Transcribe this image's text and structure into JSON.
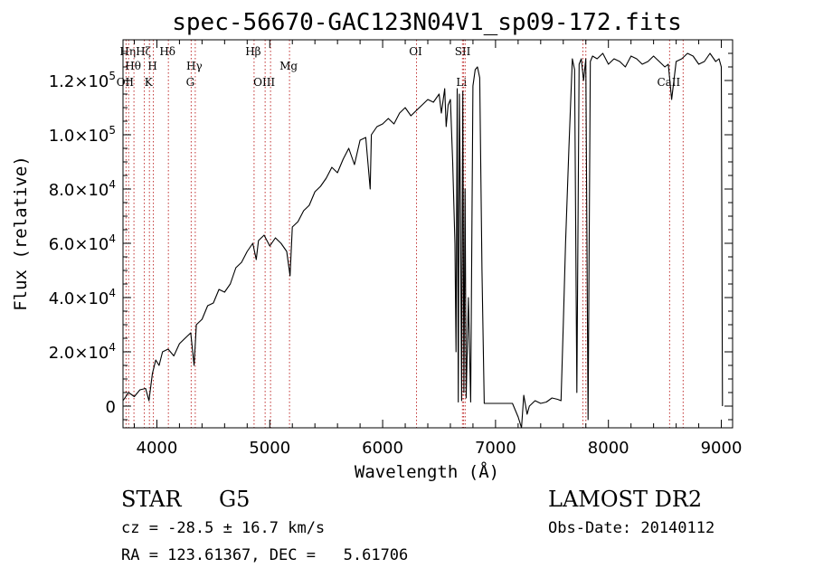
{
  "chart_data": {
    "type": "line",
    "title": "spec-56670-GAC123N04V1_sp09-172.fits",
    "xlabel": "Wavelength (Å)",
    "ylabel": "Flux (relative)",
    "xlim": [
      3700,
      9100
    ],
    "ylim": [
      -8000,
      135000
    ],
    "x_ticks": [
      {
        "v": 4000,
        "label": "4000"
      },
      {
        "v": 5000,
        "label": "5000"
      },
      {
        "v": 6000,
        "label": "6000"
      },
      {
        "v": 7000,
        "label": "7000"
      },
      {
        "v": 8000,
        "label": "8000"
      },
      {
        "v": 9000,
        "label": "9000"
      }
    ],
    "y_ticks": [
      {
        "v": 0,
        "mant": "0",
        "exp": ""
      },
      {
        "v": 20000,
        "mant": "2.0×10",
        "exp": "4"
      },
      {
        "v": 40000,
        "mant": "4.0×10",
        "exp": "4"
      },
      {
        "v": 60000,
        "mant": "6.0×10",
        "exp": "4"
      },
      {
        "v": 80000,
        "mant": "8.0×10",
        "exp": "4"
      },
      {
        "v": 100000,
        "mant": "1.0×10",
        "exp": "5"
      },
      {
        "v": 120000,
        "mant": "1.2×10",
        "exp": "5"
      }
    ],
    "grid": false,
    "series": [
      {
        "x": [
          3700,
          3750,
          3800,
          3850,
          3900,
          3930,
          3960,
          3990,
          4020,
          4050,
          4100,
          4150,
          4200,
          4250,
          4300,
          4330,
          4350,
          4400,
          4450,
          4500,
          4550,
          4600,
          4650,
          4700,
          4750,
          4800,
          4850,
          4880,
          4900,
          4950,
          5000,
          5050,
          5100,
          5150,
          5180,
          5200,
          5250,
          5300,
          5350,
          5400,
          5450,
          5500,
          5550,
          5600,
          5650,
          5700,
          5750,
          5800,
          5850,
          5890,
          5900,
          5950,
          6000,
          6050,
          6100,
          6150,
          6200,
          6250,
          6300,
          6350,
          6400,
          6450,
          6500,
          6520,
          6550,
          6563,
          6580,
          6600,
          6620,
          6640,
          6650,
          6660,
          6670,
          6680,
          6690,
          6700,
          6710,
          6720,
          6730,
          6740,
          6760,
          6780,
          6800,
          6820,
          6840,
          6860,
          6880,
          6900,
          6920,
          6940,
          6960,
          6980,
          7000,
          7050,
          7100,
          7150,
          7200,
          7230,
          7250,
          7280,
          7300,
          7350,
          7400,
          7450,
          7500,
          7550,
          7580,
          7600,
          7620,
          7650,
          7680,
          7700,
          7720,
          7740,
          7760,
          7780,
          7800,
          7820,
          7840,
          7860,
          7900,
          7950,
          8000,
          8050,
          8100,
          8150,
          8200,
          8250,
          8300,
          8350,
          8400,
          8450,
          8500,
          8530,
          8560,
          8600,
          8650,
          8700,
          8750,
          8800,
          8850,
          8900,
          8950,
          8980,
          9000,
          9010
        ],
        "y": [
          2000,
          5000,
          3500,
          6000,
          6500,
          2000,
          12000,
          17000,
          15000,
          20000,
          21000,
          18500,
          23000,
          25000,
          27000,
          15000,
          30000,
          32000,
          37000,
          38000,
          43000,
          42000,
          45000,
          51000,
          53000,
          57000,
          60000,
          54000,
          61000,
          63000,
          59000,
          62000,
          60000,
          57000,
          48000,
          66000,
          68000,
          72000,
          74000,
          79000,
          81000,
          84000,
          88000,
          86000,
          91000,
          95000,
          89000,
          98000,
          99000,
          80000,
          100000,
          103000,
          104000,
          106000,
          104000,
          108000,
          110000,
          107000,
          109000,
          111000,
          113000,
          112000,
          115000,
          108000,
          117000,
          103000,
          111000,
          113000,
          90000,
          60000,
          20000,
          117000,
          1500,
          115000,
          70000,
          2000,
          116000,
          5000,
          80000,
          3000,
          40000,
          1500,
          118000,
          124000,
          125000,
          121000,
          50000,
          1000,
          1000,
          1000,
          1000,
          1000,
          1000,
          1000,
          1000,
          1000,
          -4000,
          -8000,
          4000,
          -3000,
          0,
          2000,
          1000,
          1500,
          3000,
          2500,
          2000,
          30000,
          60000,
          95000,
          128000,
          124000,
          5000,
          126000,
          128000,
          120000,
          128000,
          -5000,
          127000,
          129000,
          128000,
          130000,
          126000,
          128000,
          127000,
          125000,
          129000,
          128000,
          126000,
          127000,
          129000,
          127000,
          125000,
          126000,
          113000,
          127000,
          128000,
          130000,
          129000,
          126000,
          127000,
          130000,
          127000,
          128000,
          125000,
          0
        ]
      }
    ],
    "line_markers": [
      {
        "x": 3750,
        "label": "Hη",
        "row": 0
      },
      {
        "x": 3797,
        "label": "Hθ",
        "row": 1
      },
      {
        "x": 3727,
        "label": "OII",
        "row": 2
      },
      {
        "x": 3889,
        "label": "Hζ",
        "row": 0
      },
      {
        "x": 3934,
        "label": "K",
        "row": 2
      },
      {
        "x": 3969,
        "label": "H",
        "row": 1
      },
      {
        "x": 4102,
        "label": "Hδ",
        "row": 0
      },
      {
        "x": 4304,
        "label": "G",
        "row": 2
      },
      {
        "x": 4340,
        "label": "Hγ",
        "row": 1
      },
      {
        "x": 4861,
        "label": "Hβ",
        "row": 0
      },
      {
        "x": 4959,
        "label": "OIII",
        "row": 2
      },
      {
        "x": 5007,
        "label": "",
        "row": 2
      },
      {
        "x": 5175,
        "label": "Mg",
        "row": 1
      },
      {
        "x": 6300,
        "label": "OI",
        "row": 0
      },
      {
        "x": 6707,
        "label": "Li",
        "row": 2
      },
      {
        "x": 6717,
        "label": "SII",
        "row": 0
      },
      {
        "x": 6731,
        "label": "",
        "row": 0
      },
      {
        "x": 7774,
        "label": "",
        "row": 0
      },
      {
        "x": 7800,
        "label": "",
        "row": 0
      },
      {
        "x": 8542,
        "label": "CaII",
        "row": 2
      },
      {
        "x": 8662,
        "label": "",
        "row": 2
      }
    ]
  },
  "footer": {
    "class": "STAR",
    "subclass": "G5",
    "survey": "LAMOST DR2",
    "cz": "cz = -28.5 ± 16.7 km/s",
    "obs_date": "Obs-Date: 20140112",
    "radec": "RA = 123.61367, DEC =   5.61706"
  }
}
